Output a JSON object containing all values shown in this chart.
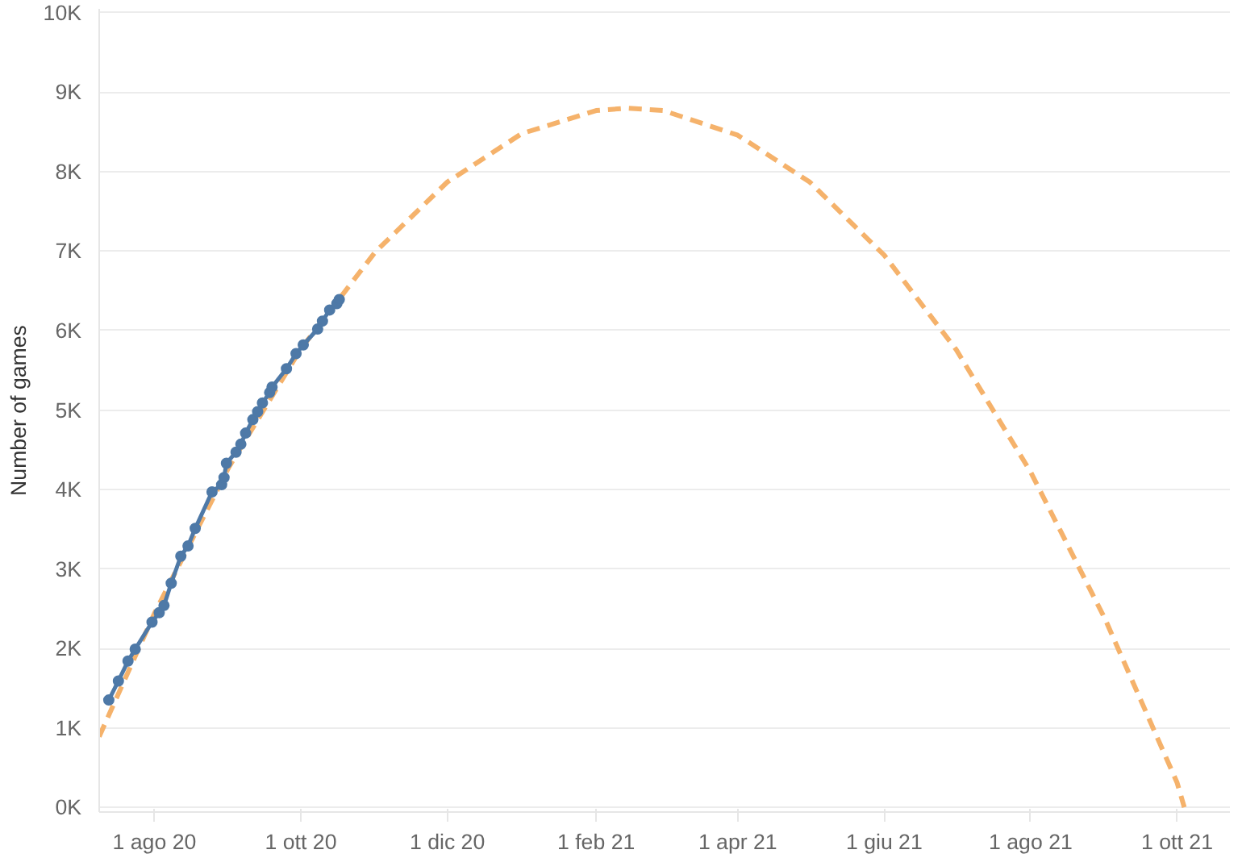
{
  "chart_data": {
    "type": "line",
    "ylabel": "Number of games",
    "grid": "y",
    "xlim": [
      "2020-07-09",
      "2021-10-23"
    ],
    "ylim": [
      -60,
      10050
    ],
    "xticks": [
      {
        "value": "2020-08-01",
        "label": "1 ago 20"
      },
      {
        "value": "2020-10-01",
        "label": "1 ott 20"
      },
      {
        "value": "2020-12-01",
        "label": "1 dic 20"
      },
      {
        "value": "2021-02-01",
        "label": "1 feb 21"
      },
      {
        "value": "2021-04-01",
        "label": "1 apr 21"
      },
      {
        "value": "2021-06-01",
        "label": "1 giu 21"
      },
      {
        "value": "2021-08-01",
        "label": "1 ago 21"
      },
      {
        "value": "2021-10-01",
        "label": "1 ott 21"
      }
    ],
    "yticks": [
      {
        "value": 0,
        "label": "0K"
      },
      {
        "value": 1000,
        "label": "1K"
      },
      {
        "value": 2000,
        "label": "2K"
      },
      {
        "value": 3000,
        "label": "3K"
      },
      {
        "value": 4000,
        "label": "4K"
      },
      {
        "value": 5000,
        "label": "5K"
      },
      {
        "value": 6000,
        "label": "6K"
      },
      {
        "value": 7000,
        "label": "7K"
      },
      {
        "value": 8000,
        "label": "8K"
      },
      {
        "value": 9000,
        "label": "9K"
      },
      {
        "value": 10000,
        "label": "10K"
      }
    ],
    "series": [
      {
        "color": "#f5b26b",
        "line_style": "dashed",
        "marker": "none",
        "x": [
          "2020-07-09",
          "2020-08-01",
          "2020-09-01",
          "2020-10-01",
          "2020-11-01",
          "2020-12-01",
          "2021-01-01",
          "2021-02-01",
          "2021-02-14",
          "2021-03-01",
          "2021-04-01",
          "2021-05-01",
          "2021-06-01",
          "2021-07-01",
          "2021-08-01",
          "2021-09-01",
          "2021-10-01",
          "2021-10-04"
        ],
        "values": [
          890,
          2440,
          4280,
          5770,
          6990,
          7870,
          8480,
          8770,
          8800,
          8770,
          8460,
          7870,
          6950,
          5760,
          4220,
          2370,
          310,
          0
        ]
      },
      {
        "color": "#4e79a7",
        "line_style": "solid",
        "marker": "circle",
        "x": [
          "2020-07-13",
          "2020-07-17",
          "2020-07-21",
          "2020-07-24",
          "2020-07-31",
          "2020-08-03",
          "2020-08-05",
          "2020-08-08",
          "2020-08-12",
          "2020-08-15",
          "2020-08-18",
          "2020-08-25",
          "2020-08-29",
          "2020-08-30",
          "2020-08-31",
          "2020-09-04",
          "2020-09-06",
          "2020-09-08",
          "2020-09-11",
          "2020-09-13",
          "2020-09-15",
          "2020-09-18",
          "2020-09-19",
          "2020-09-25",
          "2020-09-29",
          "2020-10-02",
          "2020-10-08",
          "2020-10-10",
          "2020-10-13",
          "2020-10-16",
          "2020-10-17"
        ],
        "values": [
          1350,
          1590,
          1840,
          1990,
          2330,
          2450,
          2540,
          2820,
          3160,
          3290,
          3510,
          3970,
          4060,
          4150,
          4330,
          4470,
          4570,
          4710,
          4880,
          4980,
          5090,
          5220,
          5290,
          5520,
          5710,
          5820,
          6020,
          6120,
          6260,
          6340,
          6390
        ]
      }
    ]
  }
}
